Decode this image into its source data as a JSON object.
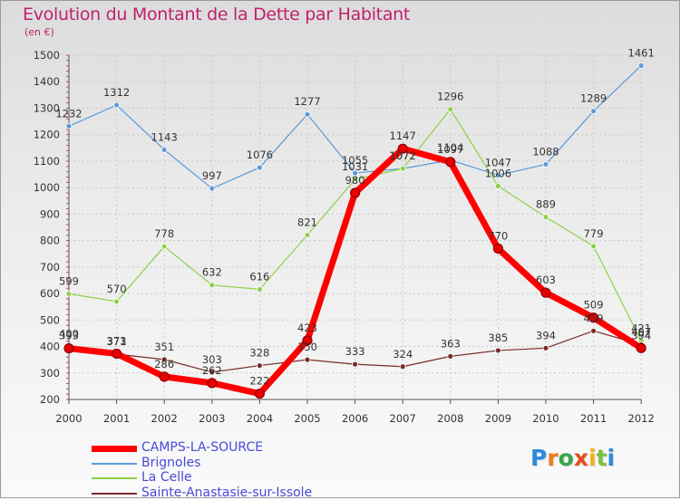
{
  "title": "Evolution du Montant de la Dette par Habitant",
  "unit": "(en €)",
  "logo": {
    "letters": [
      "P",
      "r",
      "o",
      "x",
      "i",
      "t",
      "i"
    ],
    "colors": [
      "#2b8be0",
      "#f07a1a",
      "#3aa64a",
      "#e84a1e",
      "#f0b21a",
      "#7ac142",
      "#2b8be0"
    ]
  },
  "chart_data": {
    "type": "line",
    "title": "Evolution du Montant de la Dette par Habitant",
    "ylabel": "(en €)",
    "xlabel": "",
    "categories": [
      "2000",
      "2001",
      "2002",
      "2003",
      "2004",
      "2005",
      "2006",
      "2007",
      "2008",
      "2009",
      "2010",
      "2011",
      "2012"
    ],
    "ylim": [
      200,
      1500
    ],
    "yticks": [
      200,
      300,
      400,
      500,
      600,
      700,
      800,
      900,
      1000,
      1100,
      1200,
      1300,
      1400,
      1500
    ],
    "grid": true,
    "legend_position": "bottom-left",
    "series": [
      {
        "name": "Brignoles",
        "color": "#5a9ad8",
        "width": 1.2,
        "values": [
          1232,
          1312,
          1143,
          997,
          1076,
          1277,
          1055,
          1072,
          1104,
          1047,
          1088,
          1289,
          1461
        ]
      },
      {
        "name": "La Celle",
        "color": "#8ed04a",
        "width": 1.2,
        "values": [
          599,
          570,
          778,
          632,
          616,
          821,
          1031,
          1072,
          1296,
          1006,
          889,
          779,
          421
        ]
      },
      {
        "name": "Sainte-Anastasie-sur-Issole",
        "color": "#7a2a2a",
        "width": 1.2,
        "values": [
          400,
          371,
          351,
          303,
          328,
          350,
          333,
          324,
          363,
          385,
          394,
          459,
          407
        ]
      },
      {
        "name": "CAMPS-LA-SOURCE",
        "color": "#ff0000",
        "width": 7,
        "values": [
          393,
          373,
          286,
          262,
          222,
          423,
          980,
          1147,
          1097,
          770,
          603,
          509,
          394
        ]
      }
    ],
    "legend_order": [
      "CAMPS-LA-SOURCE",
      "Brignoles",
      "La Celle",
      "Sainte-Anastasie-sur-Issole"
    ]
  }
}
